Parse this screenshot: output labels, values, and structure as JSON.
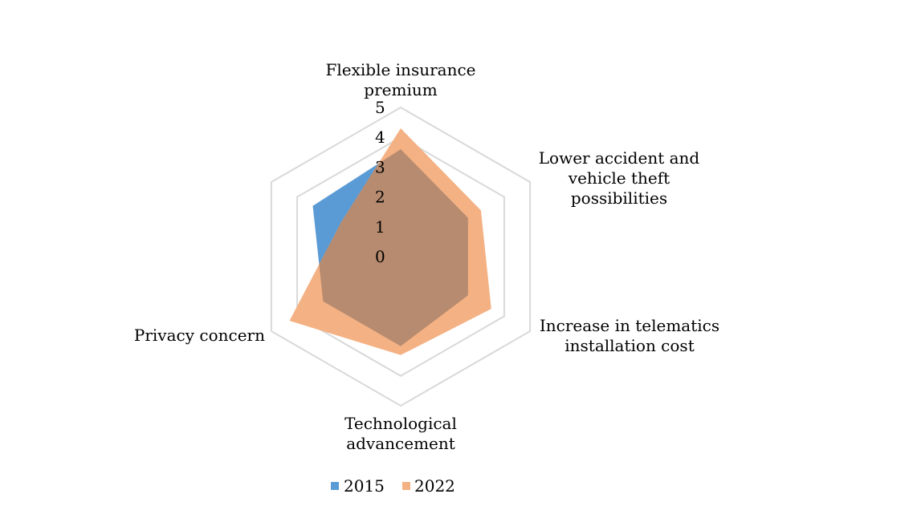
{
  "chart_data": {
    "type": "radar",
    "categories": [
      "Flexible insurance premium",
      "Lower accident and vehicle theft possibilities",
      "Increase in telematics installation cost",
      "Technological advancement",
      "Privacy concern",
      ""
    ],
    "category_lines": [
      [
        "Flexible insurance",
        "premium"
      ],
      [
        "Lower accident and",
        "vehicle theft",
        "possibilities"
      ],
      [
        "Increase in telematics",
        "installation cost"
      ],
      [
        "Technological",
        "advancement"
      ],
      [
        "Privacy concern"
      ],
      []
    ],
    "series": [
      {
        "name": "2015",
        "color": "#5B9BD5",
        "values": [
          3.6,
          2.6,
          2.6,
          3.0,
          3.0,
          3.4
        ]
      },
      {
        "name": "2022",
        "color": "#F4B183",
        "values": [
          4.3,
          3.1,
          3.5,
          3.3,
          4.3,
          2.3
        ]
      }
    ],
    "overlap_color": "#B78B6F",
    "rlim": [
      0,
      5
    ],
    "ticks": [
      "0",
      "1",
      "2",
      "3",
      "4",
      "5"
    ],
    "grid_levels": [
      4,
      5
    ],
    "grid_color": "#D9D9D9",
    "legend_position": "bottom"
  }
}
